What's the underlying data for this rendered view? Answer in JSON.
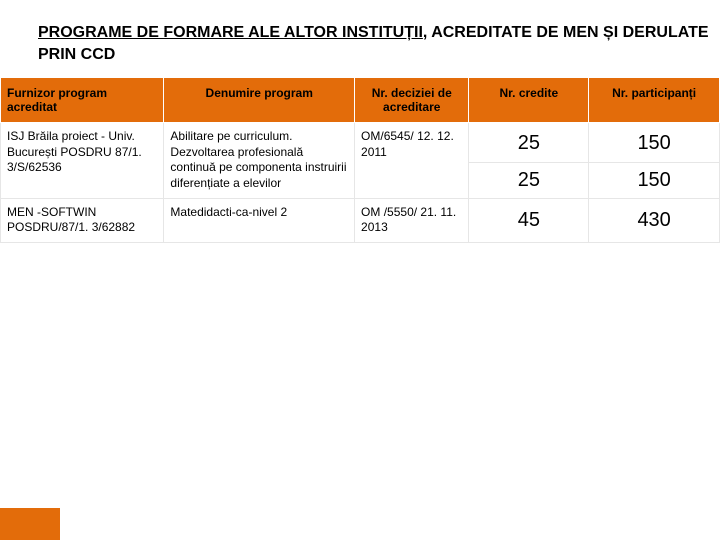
{
  "title_part1": "PROGRAME DE FORMARE ALE ALTOR INSTITUȚII",
  "title_part2": ", ACREDITATE DE MEN ȘI DERULATE PRIN CCD",
  "columns": [
    "Furnizor program acreditat",
    "Denumire program",
    "Nr. deciziei de acreditare",
    "Nr. credite",
    "Nr. partici­panți"
  ],
  "rows": [
    {
      "furnizor": "ISJ Brăila proiect - Univ. București POSDRU 87/1. 3/S/62536",
      "denumire": "Abilitare pe curriculum. Dezvoltarea profesională continuă pe componenta instruirii diferențiate a elevilor",
      "decizie": "OM/6545/ 12. 12. 2011",
      "credite1": "25",
      "participanti1": "150",
      "credite2": "25",
      "participanti2": "150"
    },
    {
      "furnizor": "MEN -SOFTWIN POSDRU/87/1. 3/62882",
      "denumire": "Matedidacti-ca-nivel 2",
      "decizie": "OM /5550/ 21. 11. 2013",
      "credite1": "45",
      "participanti1": "430"
    }
  ],
  "colors": {
    "header_bg": "#e36c0a",
    "page_bg": "#ffffff",
    "text": "#000000",
    "cell_border": "#e6e6e6"
  },
  "bottom_bar_width": 60
}
